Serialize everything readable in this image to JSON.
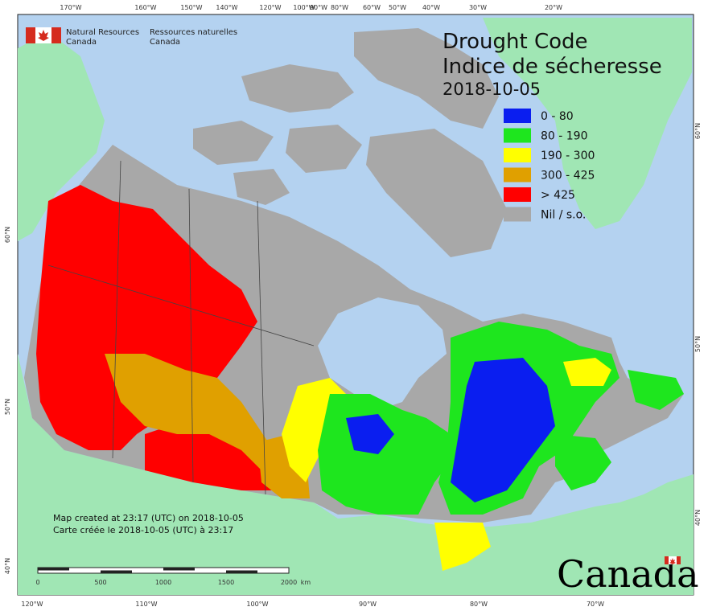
{
  "title_en": "Drought Code",
  "title_fr": "Indice de sécheresse",
  "date": "2018-10-05",
  "agency": {
    "en_line1": "Natural Resources",
    "en_line2": "Canada",
    "fr_line1": "Ressources naturelles",
    "fr_line2": "Canada"
  },
  "legend": [
    {
      "label": "0 - 80",
      "color": "#0a1ef0"
    },
    {
      "label": "80 - 190",
      "color": "#1ee61e"
    },
    {
      "label": "190 - 300",
      "color": "#ffff00"
    },
    {
      "label": "300 - 425",
      "color": "#e0a000"
    },
    {
      "label": "> 425",
      "color": "#ff0000"
    },
    {
      "label": "Nil / s.o.",
      "color": "#a8a8a8"
    }
  ],
  "credits": {
    "line1": "Map created at 23:17 (UTC) on 2018-10-05",
    "line2": "Carte créée le 2018-10-05 (UTC) à 23:17"
  },
  "scale_bar": {
    "labels": [
      "0",
      "500",
      "1000",
      "1500",
      "2000"
    ],
    "unit": "km"
  },
  "top_ticks": [
    "170°W",
    "160°W",
    "150°W",
    "140°W",
    "120°W",
    "100°W",
    "90°W",
    "80°W",
    "60°W",
    "50°W",
    "40°W",
    "30°W",
    "20°W"
  ],
  "bottom_ticks": [
    "120°W",
    "110°W",
    "100°W",
    "90°W",
    "80°W",
    "70°W"
  ],
  "left_ticks": [
    "60°N",
    "50°N",
    "40°N"
  ],
  "right_ticks": [
    "60°N",
    "50°N",
    "40°N"
  ],
  "wordmark": "Canada",
  "colors": {
    "ocean": "#b4d2f0",
    "land_other": "#a0e6b4",
    "nil": "#a8a8a8",
    "border": "#444444"
  }
}
